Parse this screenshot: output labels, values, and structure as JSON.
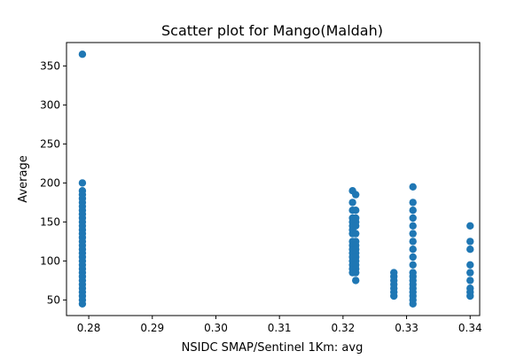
{
  "chart_data": {
    "type": "scatter",
    "title": "Scatter plot for Mango(Maldah)",
    "xlabel": "NSIDC SMAP/Sentinel 1Km: avg",
    "ylabel": "Average",
    "xlim": [
      0.2765,
      0.3415
    ],
    "ylim": [
      30,
      380
    ],
    "xticks": [
      0.28,
      0.29,
      0.3,
      0.31,
      0.32,
      0.33,
      0.34
    ],
    "xtick_labels": [
      "0.28",
      "0.29",
      "0.30",
      "0.31",
      "0.32",
      "0.33",
      "0.34"
    ],
    "yticks": [
      50,
      100,
      150,
      200,
      250,
      300,
      350
    ],
    "ytick_labels": [
      "50",
      "100",
      "150",
      "200",
      "250",
      "300",
      "350"
    ],
    "grid": false,
    "marker_color": "#1f77b4",
    "series": [
      {
        "points": [
          [
            0.279,
            365
          ],
          [
            0.279,
            200
          ],
          [
            0.279,
            190
          ],
          [
            0.279,
            185
          ],
          [
            0.279,
            180
          ],
          [
            0.279,
            175
          ],
          [
            0.279,
            170
          ],
          [
            0.279,
            165
          ],
          [
            0.279,
            160
          ],
          [
            0.279,
            155
          ],
          [
            0.279,
            150
          ],
          [
            0.279,
            145
          ],
          [
            0.279,
            140
          ],
          [
            0.279,
            135
          ],
          [
            0.279,
            130
          ],
          [
            0.279,
            125
          ],
          [
            0.279,
            120
          ],
          [
            0.279,
            115
          ],
          [
            0.279,
            110
          ],
          [
            0.279,
            105
          ],
          [
            0.279,
            100
          ],
          [
            0.279,
            95
          ],
          [
            0.279,
            90
          ],
          [
            0.279,
            85
          ],
          [
            0.279,
            80
          ],
          [
            0.279,
            75
          ],
          [
            0.279,
            70
          ],
          [
            0.279,
            65
          ],
          [
            0.279,
            60
          ],
          [
            0.279,
            55
          ],
          [
            0.279,
            50
          ],
          [
            0.279,
            45
          ],
          [
            0.3215,
            190
          ],
          [
            0.3215,
            175
          ],
          [
            0.3215,
            165
          ],
          [
            0.3215,
            155
          ],
          [
            0.3215,
            150
          ],
          [
            0.3215,
            145
          ],
          [
            0.3215,
            140
          ],
          [
            0.3215,
            135
          ],
          [
            0.3215,
            125
          ],
          [
            0.3215,
            120
          ],
          [
            0.3215,
            115
          ],
          [
            0.3215,
            110
          ],
          [
            0.3215,
            105
          ],
          [
            0.3215,
            100
          ],
          [
            0.3215,
            95
          ],
          [
            0.3215,
            90
          ],
          [
            0.3215,
            85
          ],
          [
            0.322,
            185
          ],
          [
            0.322,
            165
          ],
          [
            0.322,
            155
          ],
          [
            0.322,
            150
          ],
          [
            0.322,
            145
          ],
          [
            0.322,
            135
          ],
          [
            0.322,
            125
          ],
          [
            0.322,
            120
          ],
          [
            0.322,
            115
          ],
          [
            0.322,
            110
          ],
          [
            0.322,
            105
          ],
          [
            0.322,
            100
          ],
          [
            0.322,
            95
          ],
          [
            0.322,
            90
          ],
          [
            0.322,
            85
          ],
          [
            0.322,
            75
          ],
          [
            0.328,
            85
          ],
          [
            0.328,
            80
          ],
          [
            0.328,
            75
          ],
          [
            0.328,
            70
          ],
          [
            0.328,
            65
          ],
          [
            0.328,
            60
          ],
          [
            0.328,
            55
          ],
          [
            0.331,
            195
          ],
          [
            0.331,
            175
          ],
          [
            0.331,
            165
          ],
          [
            0.331,
            155
          ],
          [
            0.331,
            145
          ],
          [
            0.331,
            135
          ],
          [
            0.331,
            125
          ],
          [
            0.331,
            115
          ],
          [
            0.331,
            105
          ],
          [
            0.331,
            95
          ],
          [
            0.331,
            85
          ],
          [
            0.331,
            80
          ],
          [
            0.331,
            75
          ],
          [
            0.331,
            70
          ],
          [
            0.331,
            65
          ],
          [
            0.331,
            60
          ],
          [
            0.331,
            55
          ],
          [
            0.331,
            50
          ],
          [
            0.331,
            45
          ],
          [
            0.34,
            145
          ],
          [
            0.34,
            125
          ],
          [
            0.34,
            115
          ],
          [
            0.34,
            95
          ],
          [
            0.34,
            85
          ],
          [
            0.34,
            75
          ],
          [
            0.34,
            65
          ],
          [
            0.34,
            60
          ],
          [
            0.34,
            55
          ]
        ]
      }
    ]
  }
}
